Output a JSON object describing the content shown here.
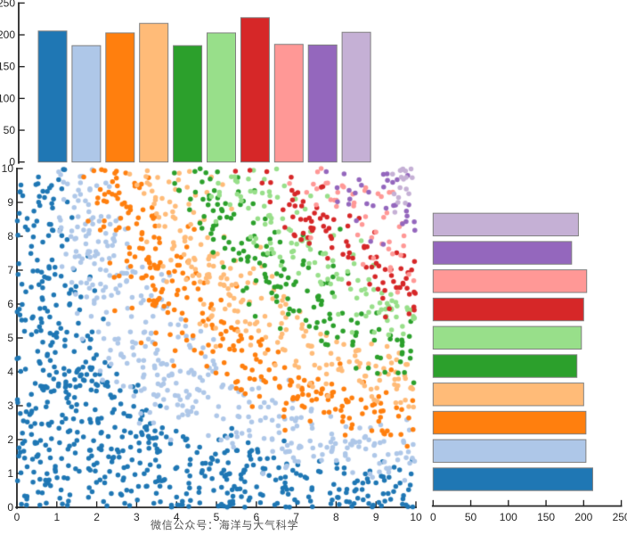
{
  "figure": {
    "background": "#ffffff",
    "caption": "微信公众号：海洋与大气科学",
    "caption_color": "#555555"
  },
  "palette": [
    {
      "name": "blue",
      "color": "#1f77b4"
    },
    {
      "name": "light-blue",
      "color": "#aec7e8"
    },
    {
      "name": "orange",
      "color": "#ff7f0e"
    },
    {
      "name": "light-orange",
      "color": "#ffbb78"
    },
    {
      "name": "green",
      "color": "#2ca02c"
    },
    {
      "name": "light-green",
      "color": "#98df8a"
    },
    {
      "name": "red",
      "color": "#d62728"
    },
    {
      "name": "pink",
      "color": "#ff9896"
    },
    {
      "name": "purple",
      "color": "#9467bd"
    },
    {
      "name": "light-purple",
      "color": "#c5b0d5"
    }
  ],
  "chart_data": [
    {
      "id": "top_histogram",
      "type": "bar",
      "orientation": "vertical",
      "categories": [
        "0-1",
        "1-2",
        "2-3",
        "3-4",
        "4-5",
        "5-6",
        "6-7",
        "7-8",
        "8-9",
        "9-10"
      ],
      "values": [
        206,
        183,
        203,
        218,
        183,
        203,
        227,
        185,
        184,
        204
      ],
      "ylim": [
        0,
        250
      ],
      "yticks": [
        0,
        50,
        100,
        150,
        200,
        250
      ],
      "bar_edge_color": "#808080",
      "legend": "none"
    },
    {
      "id": "scatter",
      "type": "scatter",
      "xlim": [
        0,
        10
      ],
      "ylim": [
        0,
        10
      ],
      "xticks": [
        0,
        1,
        2,
        3,
        4,
        5,
        6,
        7,
        8,
        9,
        10
      ],
      "yticks": [
        0,
        1,
        2,
        3,
        4,
        5,
        6,
        7,
        8,
        9,
        10
      ],
      "n_points": 2000,
      "marker_radius": 2.75,
      "distribution": "uniform over [0,10] x [0,10]",
      "group_rule": "group = clamp(floor((x*y + N(0,1)*noise_k*sqrt(x*y))/10), 0, 9)",
      "noise_k": 0.65,
      "seed": 20240718,
      "groups": [
        "blue",
        "light-blue",
        "orange",
        "light-orange",
        "green",
        "light-green",
        "red",
        "pink",
        "purple",
        "light-purple"
      ]
    },
    {
      "id": "right_histogram",
      "type": "bar",
      "orientation": "horizontal",
      "categories": [
        "0-1",
        "1-2",
        "2-3",
        "3-4",
        "4-5",
        "5-6",
        "6-7",
        "7-8",
        "8-9",
        "9-10"
      ],
      "values": [
        212,
        203,
        203,
        200,
        191,
        197,
        200,
        204,
        184,
        193
      ],
      "xlim": [
        0,
        250
      ],
      "xticks": [
        0,
        50,
        100,
        150,
        200,
        250
      ],
      "bar_edge_color": "#808080",
      "legend": "none"
    }
  ]
}
